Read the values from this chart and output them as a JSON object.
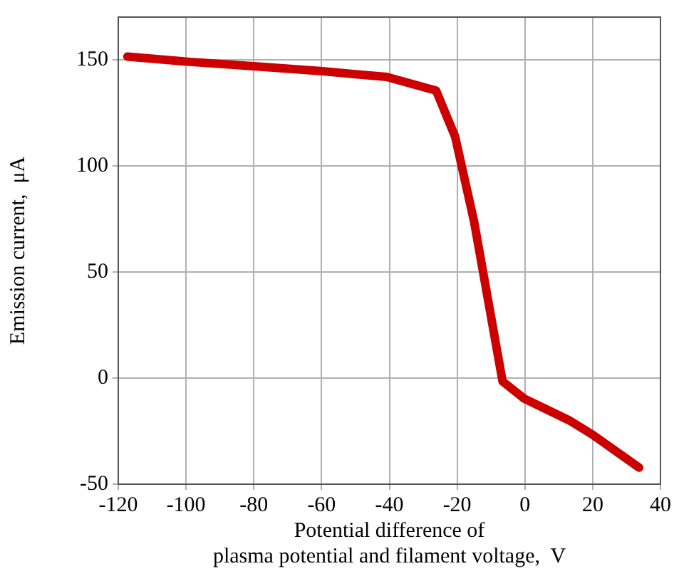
{
  "chart_data": {
    "type": "line",
    "xlabel": "Potential difference of\nplasma potential and filament voltage,  V",
    "ylabel": "Emission current,  μA",
    "xlim": [
      -120,
      40
    ],
    "xticks": [
      -120,
      -100,
      -80,
      -60,
      -40,
      -20,
      0,
      20,
      40
    ],
    "ylim": [
      -50,
      170
    ],
    "yticks": [
      -50,
      0,
      50,
      100,
      150
    ],
    "grid": true,
    "marker": "none",
    "line_style": "solid",
    "series": [
      {
        "color": "#cc0000",
        "x": [
          -117.3,
          -99.6,
          -79.3,
          -59.7,
          -40.8,
          -26.2,
          -20.6,
          -15,
          -6.6,
          -0.3,
          13,
          20,
          33.7
        ],
        "values": [
          151.4,
          149,
          146.8,
          144.5,
          141.8,
          135.4,
          113.7,
          73.7,
          -1.6,
          -9.6,
          -19.9,
          -26.7,
          -42.2
        ]
      }
    ]
  }
}
